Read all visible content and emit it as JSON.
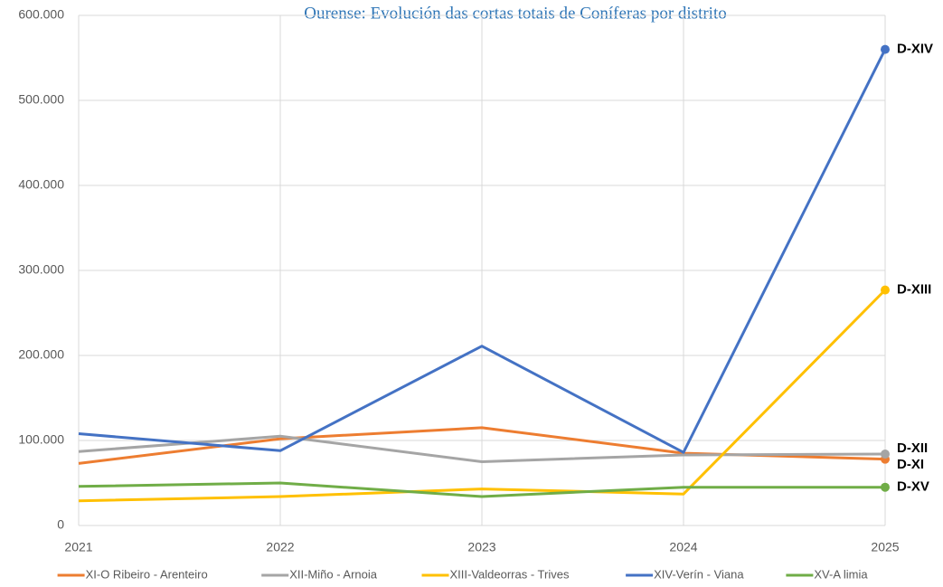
{
  "chart_data": {
    "type": "line",
    "title": "Ourense: Evolución das cortas totais de Coníferas por distrito",
    "x": [
      2021,
      2022,
      2023,
      2024,
      2025
    ],
    "xlim": [
      2021,
      2025
    ],
    "xticks": [
      2021,
      2022,
      2023,
      2024,
      2025
    ],
    "ylim": [
      0,
      600000
    ],
    "yticks": [
      0,
      {
        "value": 100000,
        "label": "100.000"
      },
      {
        "value": 200000,
        "label": "200.000"
      },
      {
        "value": 300000,
        "label": "300.000"
      },
      {
        "value": 400000,
        "label": "400.000"
      },
      {
        "value": 500000,
        "label": "500.000"
      },
      {
        "value": 600000,
        "label": "600.000"
      }
    ],
    "grid": true,
    "legend": "bottom",
    "series": [
      {
        "name": "XI-O Ribeiro - Arenteiro",
        "color": "#ed7d31",
        "values": [
          73000,
          102000,
          115000,
          85000,
          78000
        ],
        "end_label": "D-XI"
      },
      {
        "name": "XII-Miño - Arnoia",
        "color": "#a5a5a5",
        "values": [
          87000,
          105000,
          75000,
          83000,
          84000
        ],
        "end_label": "D-XII"
      },
      {
        "name": "XIII-Valdeorras - Trives",
        "color": "#ffc000",
        "values": [
          29000,
          34000,
          43000,
          37000,
          277000
        ],
        "end_label": "D-XIII"
      },
      {
        "name": "XIV-Verín - Viana",
        "color": "#4472c4",
        "values": [
          108000,
          88000,
          211000,
          86000,
          560000
        ],
        "end_label": "D-XIV"
      },
      {
        "name": "XV-A limia",
        "color": "#70ad47",
        "values": [
          46000,
          50000,
          34000,
          45000,
          45000
        ],
        "end_label": "D-XV"
      }
    ]
  }
}
